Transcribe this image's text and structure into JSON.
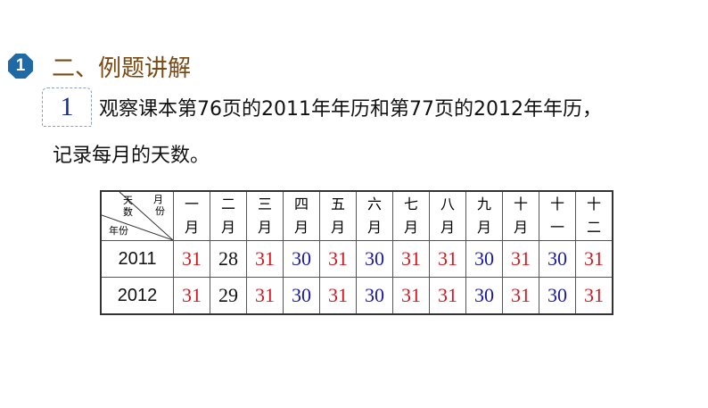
{
  "badge": "1",
  "section_title": "二、例题讲解",
  "example_number": "1",
  "question_line1": "观察课本第76页的2011年年历和第77页的2012年年历，",
  "question_line2": "记录每月的天数。",
  "table": {
    "corner": {
      "top": "天",
      "top2": "数",
      "right": "月",
      "right2": "份",
      "bottom": "年份"
    },
    "months": [
      [
        "一",
        "月"
      ],
      [
        "二",
        "月"
      ],
      [
        "三",
        "月"
      ],
      [
        "四",
        "月"
      ],
      [
        "五",
        "月"
      ],
      [
        "六",
        "月"
      ],
      [
        "七",
        "月"
      ],
      [
        "八",
        "月"
      ],
      [
        "九",
        "月"
      ],
      [
        "十",
        "月"
      ],
      [
        "十",
        "一"
      ],
      [
        "十",
        "二"
      ]
    ],
    "rows": [
      {
        "year": "2011",
        "days": [
          "31",
          "28",
          "31",
          "30",
          "31",
          "30",
          "31",
          "31",
          "30",
          "31",
          "30",
          "31"
        ]
      },
      {
        "year": "2012",
        "days": [
          "31",
          "29",
          "31",
          "30",
          "31",
          "30",
          "31",
          "31",
          "30",
          "31",
          "30",
          "31"
        ]
      }
    ]
  },
  "colors": {
    "31": "#cf1a22",
    "30": "#1a1aa6",
    "other": "#111111",
    "title": "#7a4a14",
    "badge": "#1f6aa5"
  }
}
